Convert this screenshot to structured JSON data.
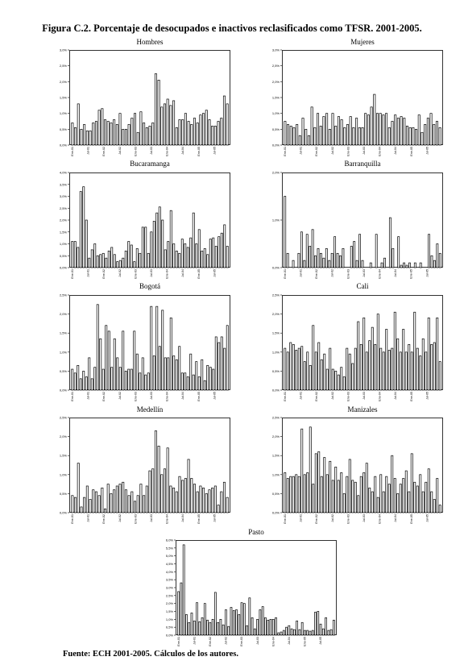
{
  "figure": {
    "title": "Figura C.2. Porcentaje de desocupados e inactivos reclasificados como TFSR. 2001-2005.",
    "source": "Fuente: ECH 2001-2005. Cálculos de los autores."
  },
  "chart_data": [
    {
      "type": "bar",
      "title": "Hombres",
      "ylim": [
        0,
        3.0
      ],
      "yticks": [
        "0,0%",
        "0,5%",
        "1,0%",
        "1,5%",
        "2,0%",
        "2,5%",
        "3,0%"
      ],
      "x_tick_labels": [
        "Ene-01",
        "Jul-01",
        "Ene-02",
        "Jul-02",
        "Ene-03",
        "Jul-03",
        "Ene-04",
        "Jul-04",
        "Ene-05",
        "Jul-05"
      ],
      "values": [
        0.7,
        0.55,
        1.3,
        0.5,
        0.65,
        0.45,
        0.45,
        0.7,
        0.75,
        1.1,
        1.15,
        0.8,
        0.75,
        0.7,
        0.8,
        0.65,
        1.0,
        0.5,
        0.5,
        0.65,
        0.85,
        1.0,
        0.4,
        1.05,
        0.7,
        0.55,
        0.6,
        0.7,
        2.25,
        2.05,
        1.2,
        1.3,
        1.45,
        1.25,
        1.4,
        0.55,
        0.8,
        0.8,
        1.0,
        0.75,
        0.65,
        0.85,
        0.7,
        0.95,
        1.0,
        1.1,
        0.8,
        0.6,
        0.6,
        0.75,
        0.85,
        1.55,
        1.3
      ]
    },
    {
      "type": "bar",
      "title": "Mujeres",
      "ylim": [
        0,
        3.0
      ],
      "yticks": [
        "0,0%",
        "0,5%",
        "1,0%",
        "1,5%",
        "2,0%",
        "2,5%",
        "3,0%"
      ],
      "x_tick_labels": [
        "Ene-01",
        "Jul-01",
        "Ene-02",
        "Jul-02",
        "Ene-03",
        "Jul-03",
        "Ene-04",
        "Jul-04",
        "Ene-05",
        "Jul-05"
      ],
      "values": [
        0.75,
        0.65,
        0.6,
        0.55,
        0.65,
        0.3,
        0.85,
        0.5,
        0.3,
        1.2,
        0.55,
        1.0,
        0.6,
        0.9,
        1.0,
        0.5,
        1.0,
        0.6,
        0.9,
        0.8,
        0.55,
        0.65,
        0.9,
        0.55,
        0.85,
        0.55,
        0.55,
        1.0,
        0.95,
        1.2,
        1.6,
        1.0,
        1.0,
        0.95,
        1.0,
        0.55,
        0.75,
        0.95,
        0.85,
        0.9,
        0.85,
        0.6,
        0.55,
        0.55,
        0.5,
        0.95,
        0.4,
        0.65,
        0.85,
        1.0,
        0.65,
        0.75,
        0.55
      ]
    },
    {
      "type": "bar",
      "title": "Bucaramanga",
      "ylim": [
        0,
        4.0
      ],
      "yticks": [
        "0,0%",
        "0,5%",
        "1,0%",
        "1,5%",
        "2,0%",
        "2,5%",
        "3,0%",
        "3,5%",
        "4,0%"
      ],
      "x_tick_labels": [
        "Ene-01",
        "Jul-01",
        "Ene-02",
        "Jul-02",
        "Ene-03",
        "Jul-03",
        "Ene-04",
        "Jul-04",
        "Ene-05",
        "Jul-05"
      ],
      "values": [
        1.1,
        1.1,
        0.85,
        3.2,
        3.4,
        2.0,
        0.4,
        0.75,
        1.0,
        0.5,
        0.55,
        0.6,
        0.4,
        0.7,
        0.85,
        0.55,
        0.25,
        0.3,
        0.4,
        0.7,
        1.1,
        0.95,
        0.25,
        0.8,
        0.6,
        1.7,
        1.7,
        0.6,
        1.5,
        1.95,
        2.3,
        2.55,
        2.0,
        0.75,
        1.1,
        2.4,
        1.0,
        0.7,
        0.6,
        1.2,
        1.0,
        0.85,
        1.25,
        2.3,
        1.0,
        1.6,
        0.7,
        0.8,
        0.55,
        1.2,
        1.25,
        0.9,
        1.3,
        1.45,
        1.8,
        0.9
      ]
    },
    {
      "type": "bar",
      "title": "Barranquilla",
      "ylim": [
        0,
        2.0
      ],
      "yticks": [
        "0,0%",
        "1,0%",
        "2,0%"
      ],
      "x_tick_labels": [
        "Ene-01",
        "Jul-01",
        "Ene-02",
        "Jul-02",
        "Ene-03",
        "Jul-03",
        "Ene-04",
        "Jul-04",
        "Ene-05",
        "Jul-05"
      ],
      "values": [
        1.5,
        0.3,
        0.0,
        0.15,
        0.0,
        0.3,
        0.75,
        0.15,
        0.7,
        0.45,
        0.8,
        0.25,
        0.4,
        0.3,
        0.2,
        0.4,
        0.15,
        0.3,
        0.65,
        0.3,
        0.25,
        0.4,
        0.0,
        0.0,
        0.45,
        0.55,
        0.15,
        0.7,
        0.15,
        0.0,
        0.0,
        0.1,
        0.0,
        0.7,
        0.0,
        0.1,
        0.2,
        0.0,
        1.05,
        0.4,
        0.0,
        0.65,
        0.05,
        0.1,
        0.05,
        0.1,
        0.0,
        0.1,
        0.0,
        0.1,
        0.0,
        0.0,
        0.7,
        0.25,
        0.15,
        0.5,
        0.3
      ]
    },
    {
      "type": "bar",
      "title": "Bogotá",
      "ylim": [
        0,
        2.5
      ],
      "yticks": [
        "0,0%",
        "0,5%",
        "1,0%",
        "1,5%",
        "2,0%",
        "2,5%"
      ],
      "x_tick_labels": [
        "Ene-01",
        "Jul-01",
        "Ene-02",
        "Jul-02",
        "Ene-03",
        "Jul-03",
        "Ene-04",
        "Jul-04",
        "Ene-05",
        "Jul-05"
      ],
      "values": [
        0.55,
        0.45,
        0.65,
        0.3,
        0.5,
        0.35,
        0.85,
        0.3,
        0.6,
        2.25,
        1.35,
        0.55,
        1.7,
        1.55,
        0.6,
        1.35,
        0.85,
        0.6,
        1.55,
        0.5,
        0.55,
        0.55,
        1.55,
        0.95,
        0.45,
        0.85,
        0.4,
        0.45,
        2.2,
        0.9,
        2.2,
        1.15,
        2.1,
        0.85,
        0.85,
        1.9,
        0.9,
        0.8,
        1.15,
        0.45,
        0.45,
        0.35,
        0.95,
        0.4,
        0.75,
        0.35,
        0.8,
        0.25,
        0.65,
        0.6,
        0.55,
        1.4,
        1.25,
        1.4,
        1.1,
        1.7
      ]
    },
    {
      "type": "bar",
      "title": "Cali",
      "ylim": [
        0,
        2.5
      ],
      "yticks": [
        "0,0%",
        "0,5%",
        "1,0%",
        "1,5%",
        "2,0%",
        "2,5%"
      ],
      "x_tick_labels": [
        "Ene-01",
        "Jul-01",
        "Ene-02",
        "Jul-02",
        "Ene-03",
        "Jul-03",
        "Ene-04",
        "Jul-04",
        "Ene-05",
        "Jul-05"
      ],
      "values": [
        1.1,
        1.0,
        1.25,
        1.2,
        1.05,
        1.1,
        1.15,
        0.75,
        1.0,
        0.65,
        1.7,
        1.0,
        1.25,
        0.8,
        0.95,
        0.55,
        1.1,
        0.55,
        0.5,
        0.4,
        0.6,
        0.35,
        1.1,
        0.95,
        0.7,
        1.1,
        1.8,
        1.2,
        1.9,
        1.0,
        1.3,
        1.65,
        1.2,
        2.0,
        1.1,
        1.0,
        1.6,
        1.05,
        1.1,
        2.05,
        1.35,
        1.0,
        1.6,
        1.0,
        1.2,
        1.0,
        2.05,
        1.1,
        0.9,
        1.35,
        1.0,
        1.9,
        1.2,
        1.25,
        1.9,
        0.75
      ]
    },
    {
      "type": "bar",
      "title": "Medellín",
      "ylim": [
        0,
        2.5
      ],
      "yticks": [
        "0,0%",
        "0,5%",
        "1,0%",
        "1,5%",
        "2,0%",
        "2,5%"
      ],
      "x_tick_labels": [
        "Ene-01",
        "Jul-01",
        "Ene-02",
        "Jul-02",
        "Ene-03",
        "Jul-03",
        "Ene-04",
        "Jul-04",
        "Ene-05",
        "Jul-05"
      ],
      "values": [
        0.45,
        0.4,
        1.3,
        0.15,
        0.4,
        0.7,
        0.35,
        0.6,
        0.55,
        0.45,
        0.65,
        0.1,
        0.75,
        0.5,
        0.6,
        0.7,
        0.75,
        0.8,
        0.6,
        0.45,
        0.55,
        0.3,
        0.45,
        0.75,
        0.45,
        0.7,
        1.1,
        1.15,
        2.15,
        1.75,
        1.0,
        1.15,
        1.7,
        0.7,
        0.65,
        0.55,
        0.95,
        0.85,
        0.9,
        1.4,
        0.9,
        0.75,
        0.55,
        0.7,
        0.65,
        0.5,
        0.6,
        0.65,
        0.7,
        0.2,
        0.55,
        0.8,
        0.4
      ]
    },
    {
      "type": "bar",
      "title": "Manizales",
      "ylim": [
        0,
        2.5
      ],
      "yticks": [
        "0,0%",
        "0,5%",
        "1,0%",
        "1,5%",
        "2,0%",
        "2,5%"
      ],
      "x_tick_labels": [
        "Ene-01",
        "Jul-01",
        "Ene-02",
        "Jul-02",
        "Ene-03",
        "Jul-03",
        "Ene-04",
        "Jul-04",
        "Ene-05",
        "Jul-05"
      ],
      "values": [
        1.05,
        0.9,
        0.95,
        0.95,
        1.0,
        0.95,
        2.2,
        1.0,
        1.05,
        2.25,
        0.75,
        1.55,
        1.6,
        0.95,
        1.45,
        1.0,
        1.35,
        0.85,
        1.2,
        0.85,
        1.05,
        0.5,
        0.95,
        1.4,
        0.85,
        0.8,
        0.45,
        0.95,
        1.05,
        1.3,
        0.65,
        0.55,
        0.95,
        0.4,
        1.0,
        0.55,
        0.95,
        0.75,
        1.5,
        0.9,
        0.5,
        0.75,
        0.9,
        1.1,
        0.55,
        1.55,
        0.8,
        0.7,
        1.0,
        0.55,
        0.8,
        1.15,
        0.55,
        0.35,
        0.9,
        0.2
      ]
    },
    {
      "type": "bar",
      "title": "Pasto",
      "ylim": [
        0,
        6.0
      ],
      "yticks": [
        "0,0%",
        "0,5%",
        "1,0%",
        "1,5%",
        "2,0%",
        "2,5%",
        "3,0%",
        "3,5%",
        "4,0%",
        "4,5%",
        "5,0%",
        "5,5%",
        "6,0%"
      ],
      "x_tick_labels": [
        "Ene-01",
        "Jul-01",
        "Ene-02",
        "Jul-02",
        "Ene-03",
        "Jul-03",
        "Ene-04",
        "Jul-04",
        "Ene-05",
        "Jul-05"
      ],
      "values": [
        2.75,
        3.3,
        5.7,
        1.3,
        0.8,
        1.4,
        0.9,
        2.05,
        0.85,
        1.1,
        2.0,
        0.95,
        0.8,
        1.0,
        2.7,
        0.8,
        1.0,
        0.65,
        1.6,
        0.55,
        1.75,
        1.55,
        1.6,
        1.3,
        2.05,
        2.0,
        0.6,
        2.35,
        1.1,
        0.4,
        1.0,
        1.6,
        1.8,
        1.1,
        0.95,
        1.0,
        1.0,
        1.1,
        0.15,
        0.2,
        0.3,
        0.5,
        0.6,
        0.4,
        0.35,
        0.9,
        0.35,
        0.8,
        0.3,
        0.3,
        0.25,
        0.3,
        1.45,
        1.5,
        0.7,
        0.4,
        1.1,
        0.3,
        0.35,
        0.95
      ]
    }
  ]
}
